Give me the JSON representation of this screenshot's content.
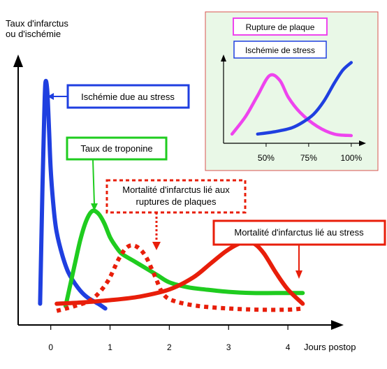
{
  "chart_data": [
    {
      "type": "line",
      "title": "",
      "ylabel_lines": [
        "Taux d'infarctus",
        "ou d'ischémie"
      ],
      "xlabel": "Jours postop",
      "x_ticks": [
        0,
        1,
        2,
        3,
        4
      ],
      "xlim": [
        -0.55,
        4.8
      ],
      "ylim": [
        0,
        1
      ],
      "grid": false,
      "annotations": [
        "Ischémie due au stress",
        "Taux de troponine",
        "Mortalité d'infarctus lié aux ruptures de plaques",
        "Mortalité d'infarctus lié au stress"
      ],
      "series": [
        {
          "color": "#1f3fe0",
          "style": "solid",
          "x": [
            -0.18,
            -0.14,
            -0.11,
            -0.09,
            -0.06,
            -0.03,
            0.0,
            0.05,
            0.1,
            0.2,
            0.3,
            0.45,
            0.6,
            0.8,
            0.92
          ],
          "y": [
            0.06,
            0.55,
            0.85,
            0.99,
            0.96,
            0.8,
            0.62,
            0.46,
            0.36,
            0.26,
            0.19,
            0.13,
            0.09,
            0.06,
            0.04
          ]
        },
        {
          "color": "#1fcc1f",
          "style": "solid",
          "x": [
            0.25,
            0.4,
            0.5,
            0.6,
            0.7,
            0.8,
            0.9,
            1.0,
            1.1,
            1.2,
            1.4,
            1.6,
            1.8,
            2.0,
            2.3,
            2.6,
            3.0,
            3.4,
            3.8,
            4.25
          ],
          "y": [
            0.05,
            0.22,
            0.33,
            0.41,
            0.45,
            0.44,
            0.4,
            0.34,
            0.3,
            0.27,
            0.24,
            0.21,
            0.18,
            0.15,
            0.13,
            0.12,
            0.11,
            0.105,
            0.105,
            0.105
          ]
        },
        {
          "color": "#e81e0a",
          "style": "dotted",
          "x": [
            0.1,
            0.4,
            0.7,
            0.95,
            1.15,
            1.3,
            1.45,
            1.6,
            1.75,
            1.9,
            2.1,
            2.5,
            3.0,
            3.5,
            4.0,
            4.25
          ],
          "y": [
            0.03,
            0.05,
            0.08,
            0.15,
            0.25,
            0.3,
            0.3,
            0.26,
            0.18,
            0.1,
            0.07,
            0.05,
            0.04,
            0.035,
            0.035,
            0.04
          ]
        },
        {
          "color": "#e81e0a",
          "style": "solid",
          "x": [
            0.1,
            0.5,
            1.0,
            1.5,
            2.0,
            2.4,
            2.7,
            2.95,
            3.15,
            3.3,
            3.45,
            3.6,
            3.8,
            4.0,
            4.25
          ],
          "y": [
            0.06,
            0.065,
            0.075,
            0.09,
            0.12,
            0.17,
            0.23,
            0.28,
            0.31,
            0.32,
            0.31,
            0.27,
            0.19,
            0.12,
            0.06
          ]
        }
      ]
    },
    {
      "type": "line",
      "title": "",
      "x_ticks": [
        "50%",
        "75%",
        "100%"
      ],
      "legend": [
        "Rupture de plaque",
        "Ischémie de stress"
      ],
      "grid": false,
      "series": [
        {
          "name": "Rupture de plaque",
          "color": "#ee44ee",
          "x": [
            30,
            38,
            45,
            52,
            58,
            63,
            70,
            80,
            90,
            100
          ],
          "y": [
            0.12,
            0.35,
            0.62,
            0.88,
            0.82,
            0.6,
            0.4,
            0.22,
            0.12,
            0.1
          ]
        },
        {
          "name": "Ischémie de stress",
          "color": "#1f3fe0",
          "x": [
            45,
            55,
            65,
            72,
            78,
            84,
            90,
            95,
            100
          ],
          "y": [
            0.12,
            0.15,
            0.2,
            0.28,
            0.38,
            0.55,
            0.78,
            0.95,
            1.05
          ]
        }
      ]
    }
  ]
}
